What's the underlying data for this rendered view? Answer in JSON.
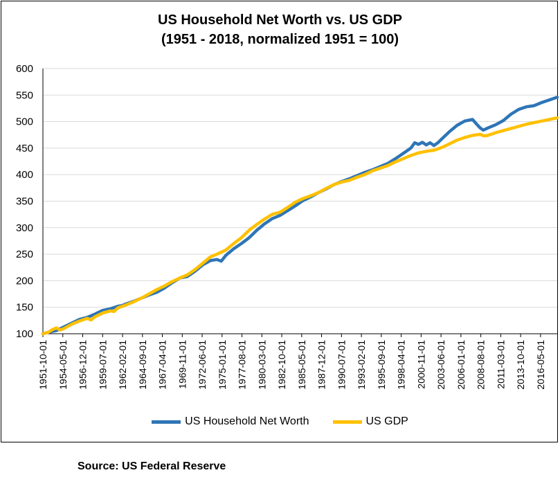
{
  "chart_data": {
    "type": "line",
    "title": "US Household Net Worth vs. US GDP",
    "subtitle": "(1951 - 2018, normalized 1951 = 100)",
    "source": "Source: US Federal Reserve",
    "ylim": [
      100,
      600
    ],
    "yticks": [
      "100",
      "150",
      "200",
      "250",
      "300",
      "350",
      "400",
      "450",
      "500",
      "550",
      "600"
    ],
    "xlim": [
      1951.75,
      2018.5
    ],
    "xticks": [
      {
        "label": "1951-10-01",
        "t": 1951.75
      },
      {
        "label": "1954-05-01",
        "t": 1954.333
      },
      {
        "label": "1956-12-01",
        "t": 1956.917
      },
      {
        "label": "1959-07-01",
        "t": 1959.5
      },
      {
        "label": "1962-02-01",
        "t": 1962.083
      },
      {
        "label": "1964-09-01",
        "t": 1964.667
      },
      {
        "label": "1967-04-01",
        "t": 1967.25
      },
      {
        "label": "1969-11-01",
        "t": 1969.833
      },
      {
        "label": "1972-06-01",
        "t": 1972.417
      },
      {
        "label": "1975-01-01",
        "t": 1975.0
      },
      {
        "label": "1977-08-01",
        "t": 1977.583
      },
      {
        "label": "1980-03-01",
        "t": 1980.167
      },
      {
        "label": "1982-10-01",
        "t": 1982.75
      },
      {
        "label": "1985-05-01",
        "t": 1985.333
      },
      {
        "label": "1987-12-01",
        "t": 1987.917
      },
      {
        "label": "1990-07-01",
        "t": 1990.5
      },
      {
        "label": "1993-02-01",
        "t": 1993.083
      },
      {
        "label": "1995-09-01",
        "t": 1995.667
      },
      {
        "label": "1998-04-01",
        "t": 1998.25
      },
      {
        "label": "2000-11-01",
        "t": 2000.833
      },
      {
        "label": "2003-06-01",
        "t": 2003.417
      },
      {
        "label": "2006-01-01",
        "t": 2006.0
      },
      {
        "label": "2008-08-01",
        "t": 2008.583
      },
      {
        "label": "2011-03-01",
        "t": 2011.167
      },
      {
        "label": "2013-10-01",
        "t": 2013.75
      },
      {
        "label": "2016-05-01",
        "t": 2016.333
      }
    ],
    "grid": true,
    "legend_position": "bottom",
    "series": [
      {
        "name": "US Household Net Worth",
        "color": "#2E75B6",
        "points": [
          [
            1951.75,
            100
          ],
          [
            1952.5,
            103
          ],
          [
            1953.5,
            106
          ],
          [
            1954.5,
            113
          ],
          [
            1955.5,
            120
          ],
          [
            1956.5,
            127
          ],
          [
            1957.5,
            131
          ],
          [
            1958.5,
            137
          ],
          [
            1959.5,
            144
          ],
          [
            1960.5,
            147
          ],
          [
            1961.5,
            152
          ],
          [
            1962.0,
            153
          ],
          [
            1962.5,
            156
          ],
          [
            1963.5,
            161
          ],
          [
            1964.5,
            167
          ],
          [
            1965.5,
            173
          ],
          [
            1966.5,
            178
          ],
          [
            1967.5,
            186
          ],
          [
            1968.5,
            196
          ],
          [
            1969.5,
            205
          ],
          [
            1970.5,
            208
          ],
          [
            1971.5,
            218
          ],
          [
            1972.5,
            230
          ],
          [
            1973.5,
            238
          ],
          [
            1974.3,
            240
          ],
          [
            1974.9,
            237
          ],
          [
            1975.5,
            248
          ],
          [
            1976.5,
            260
          ],
          [
            1977.5,
            270
          ],
          [
            1978.5,
            281
          ],
          [
            1979.5,
            295
          ],
          [
            1980.5,
            307
          ],
          [
            1981.5,
            317
          ],
          [
            1982.5,
            323
          ],
          [
            1983.5,
            332
          ],
          [
            1984.5,
            341
          ],
          [
            1985.5,
            351
          ],
          [
            1986.5,
            358
          ],
          [
            1987.5,
            366
          ],
          [
            1988.5,
            373
          ],
          [
            1989.5,
            381
          ],
          [
            1990.5,
            387
          ],
          [
            1991.5,
            392
          ],
          [
            1992.5,
            398
          ],
          [
            1993.5,
            404
          ],
          [
            1994.5,
            409
          ],
          [
            1995.5,
            415
          ],
          [
            1996.5,
            421
          ],
          [
            1997.5,
            430
          ],
          [
            1998.5,
            440
          ],
          [
            1999.5,
            450
          ],
          [
            2000.0,
            460
          ],
          [
            2000.5,
            457
          ],
          [
            2001.0,
            461
          ],
          [
            2001.5,
            456
          ],
          [
            2002.0,
            460
          ],
          [
            2002.5,
            455
          ],
          [
            2003.0,
            460
          ],
          [
            2003.5,
            467
          ],
          [
            2004.5,
            481
          ],
          [
            2005.5,
            493
          ],
          [
            2006.5,
            501
          ],
          [
            2007.5,
            504
          ],
          [
            2008.0,
            496
          ],
          [
            2008.5,
            488
          ],
          [
            2008.9,
            484
          ],
          [
            2009.5,
            488
          ],
          [
            2010.5,
            494
          ],
          [
            2011.5,
            502
          ],
          [
            2012.5,
            514
          ],
          [
            2013.5,
            523
          ],
          [
            2014.5,
            528
          ],
          [
            2015.5,
            530
          ],
          [
            2016.5,
            536
          ],
          [
            2017.5,
            541
          ],
          [
            2018.5,
            546
          ]
        ]
      },
      {
        "name": "US GDP",
        "color": "#FFC000",
        "points": [
          [
            1951.75,
            100
          ],
          [
            1952.5,
            103
          ],
          [
            1953.0,
            108
          ],
          [
            1953.5,
            111
          ],
          [
            1954.0,
            107
          ],
          [
            1954.5,
            110
          ],
          [
            1955.5,
            118
          ],
          [
            1956.5,
            124
          ],
          [
            1957.5,
            129
          ],
          [
            1958.0,
            126
          ],
          [
            1958.5,
            132
          ],
          [
            1959.5,
            139
          ],
          [
            1960.5,
            143
          ],
          [
            1961.0,
            142
          ],
          [
            1961.5,
            149
          ],
          [
            1962.5,
            154
          ],
          [
            1963.5,
            160
          ],
          [
            1964.5,
            167
          ],
          [
            1965.5,
            175
          ],
          [
            1966.5,
            183
          ],
          [
            1967.5,
            190
          ],
          [
            1968.5,
            198
          ],
          [
            1969.5,
            205
          ],
          [
            1970.5,
            211
          ],
          [
            1971.5,
            221
          ],
          [
            1972.5,
            233
          ],
          [
            1973.5,
            245
          ],
          [
            1974.5,
            251
          ],
          [
            1975.5,
            258
          ],
          [
            1976.5,
            270
          ],
          [
            1977.5,
            281
          ],
          [
            1978.5,
            295
          ],
          [
            1979.5,
            306
          ],
          [
            1980.5,
            316
          ],
          [
            1981.5,
            325
          ],
          [
            1982.5,
            329
          ],
          [
            1983.5,
            338
          ],
          [
            1984.5,
            348
          ],
          [
            1985.5,
            355
          ],
          [
            1986.5,
            360
          ],
          [
            1987.5,
            366
          ],
          [
            1988.5,
            374
          ],
          [
            1989.5,
            381
          ],
          [
            1990.5,
            386
          ],
          [
            1991.5,
            389
          ],
          [
            1992.5,
            395
          ],
          [
            1993.5,
            400
          ],
          [
            1994.5,
            407
          ],
          [
            1995.5,
            412
          ],
          [
            1996.5,
            417
          ],
          [
            1997.5,
            424
          ],
          [
            1998.5,
            430
          ],
          [
            1999.5,
            436
          ],
          [
            2000.5,
            441
          ],
          [
            2001.5,
            444
          ],
          [
            2002.5,
            446
          ],
          [
            2003.5,
            451
          ],
          [
            2004.5,
            458
          ],
          [
            2005.5,
            465
          ],
          [
            2006.5,
            470
          ],
          [
            2007.5,
            474
          ],
          [
            2008.5,
            476
          ],
          [
            2009.0,
            473
          ],
          [
            2009.5,
            474
          ],
          [
            2010.5,
            479
          ],
          [
            2011.5,
            483
          ],
          [
            2012.5,
            487
          ],
          [
            2013.5,
            491
          ],
          [
            2014.5,
            495
          ],
          [
            2015.5,
            498
          ],
          [
            2016.5,
            501
          ],
          [
            2017.5,
            504
          ],
          [
            2018.5,
            507
          ]
        ]
      }
    ]
  }
}
